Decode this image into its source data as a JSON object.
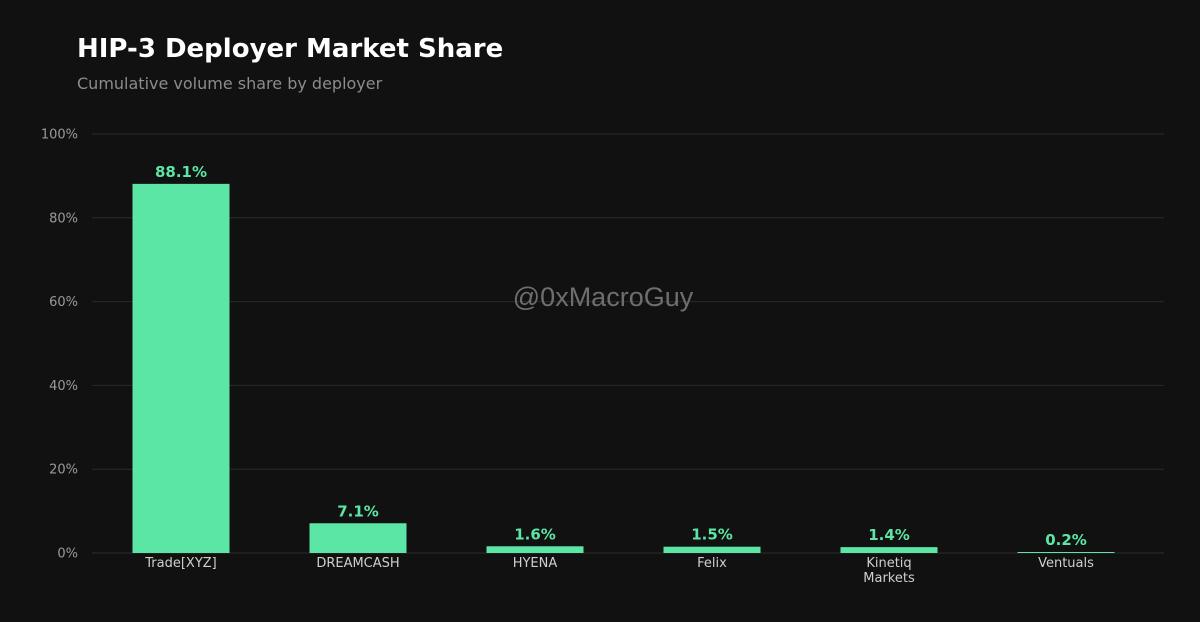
{
  "title": "HIP-3 Deployer Market Share",
  "subtitle": "Cumulative volume share by deployer",
  "watermark": "@0xMacroGuy",
  "colors": {
    "background": "#111111",
    "bar": "#5ce6a6",
    "grid": "#2a2a2a",
    "data_label": "#5ce6a6"
  },
  "chart_data": {
    "type": "bar",
    "title": "HIP-3 Deployer Market Share",
    "subtitle": "Cumulative volume share by deployer",
    "categories": [
      "Trade[XYZ]",
      "DREAMCASH",
      "HYENA",
      "Felix",
      "Kinetiq Markets",
      "Ventuals"
    ],
    "values": [
      88.1,
      7.1,
      1.6,
      1.5,
      1.4,
      0.2
    ],
    "data_labels": [
      "88.1%",
      "7.1%",
      "1.6%",
      "1.5%",
      "1.4%",
      "0.2%"
    ],
    "ylim": [
      0,
      100
    ],
    "yticks": [
      0,
      20,
      40,
      60,
      80,
      100
    ],
    "ytick_labels": [
      "0%",
      "20%",
      "40%",
      "60%",
      "80%",
      "100%"
    ],
    "xlabel": "",
    "ylabel": "",
    "grid": true,
    "legend": "none"
  }
}
